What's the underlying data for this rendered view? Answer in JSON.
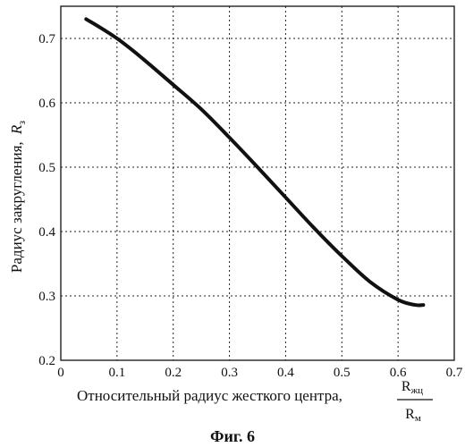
{
  "caption": "Фиг. 6",
  "chart_data": {
    "type": "line",
    "xlabel": "Относительный радиус жесткого центра,",
    "xlabel_fraction": {
      "numerator": "R",
      "numerator_sub": "жц",
      "denominator": "R",
      "denominator_sub": "м"
    },
    "ylabel": "Радиус закругления,",
    "ylabel_symbol": {
      "main": "R",
      "sub": "з"
    },
    "xlim": [
      0,
      0.7
    ],
    "ylim": [
      0.2,
      0.75
    ],
    "xticks": [
      "0",
      "0.1",
      "0.2",
      "0.3",
      "0.4",
      "0.5",
      "0.6",
      "0.7"
    ],
    "yticks": [
      "0.2",
      "0.3",
      "0.4",
      "0.5",
      "0.6",
      "0.7"
    ],
    "grid": true,
    "series": [
      {
        "x": [
          0.045,
          0.07,
          0.1,
          0.13,
          0.16,
          0.2,
          0.25,
          0.3,
          0.35,
          0.4,
          0.45,
          0.5,
          0.55,
          0.6,
          0.63,
          0.645
        ],
        "y": [
          0.73,
          0.717,
          0.7,
          0.68,
          0.658,
          0.628,
          0.59,
          0.546,
          0.5,
          0.453,
          0.406,
          0.362,
          0.322,
          0.294,
          0.286,
          0.286
        ]
      }
    ]
  }
}
